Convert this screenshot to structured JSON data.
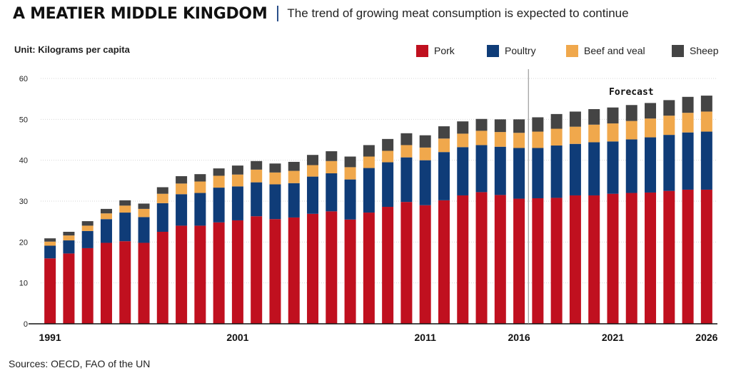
{
  "header": {
    "title": "A MEATIER MIDDLE KINGDOM",
    "subtitle": "The trend of growing meat consumption is expected to continue"
  },
  "unit_label": "Unit: Kilograms per capita",
  "source": "Sources: OECD, FAO of the UN",
  "colors": {
    "Pork": "#c0101f",
    "Poultry": "#0f3c78",
    "Beef and veal": "#f0a84c",
    "Sheep": "#444444"
  },
  "chart_data": {
    "type": "bar",
    "stacked": true,
    "categories": [
      "1991",
      "1992",
      "1993",
      "1994",
      "1995",
      "1996",
      "1997",
      "1998",
      "1999",
      "2000",
      "2001",
      "2002",
      "2003",
      "2004",
      "2005",
      "2006",
      "2007",
      "2008",
      "2009",
      "2010",
      "2011",
      "2012",
      "2013",
      "2014",
      "2015",
      "2016",
      "2017",
      "2018",
      "2019",
      "2020",
      "2021",
      "2022",
      "2023",
      "2024",
      "2025",
      "2026"
    ],
    "xtick_labels": [
      {
        "category": "1991",
        "label": "1991"
      },
      {
        "category": "2001",
        "label": "2001"
      },
      {
        "category": "2011",
        "label": "2011"
      },
      {
        "category": "2016",
        "label": "2016"
      },
      {
        "category": "2021",
        "label": "2021"
      },
      {
        "category": "2026",
        "label": "2026"
      }
    ],
    "series": [
      {
        "name": "Pork",
        "values": [
          16,
          17.2,
          18.5,
          19.8,
          20.2,
          19.8,
          22.5,
          24,
          24,
          24.8,
          25.3,
          26.3,
          25.6,
          26,
          26.9,
          27.5,
          25.5,
          27.2,
          28.6,
          29.8,
          29,
          30.2,
          31.4,
          32.2,
          31.5,
          30.6,
          30.7,
          30.8,
          31.4,
          31.4,
          31.8,
          32,
          32.1,
          32.5,
          32.8,
          32.8
        ]
      },
      {
        "name": "Poultry",
        "values": [
          3.1,
          3.2,
          4.2,
          5.8,
          7,
          6.3,
          7,
          7.7,
          8,
          8.5,
          8.3,
          8.3,
          8.5,
          8.4,
          9.1,
          9.3,
          9.8,
          10.9,
          10.9,
          10.9,
          11,
          11.8,
          11.8,
          11.5,
          11.8,
          12.4,
          12.3,
          12.8,
          12.6,
          13,
          12.8,
          13.1,
          13.5,
          13.7,
          14,
          14.2
        ]
      },
      {
        "name": "Beef and veal",
        "values": [
          1,
          1.2,
          1.3,
          1.4,
          1.7,
          2,
          2.3,
          2.6,
          2.8,
          2.9,
          2.9,
          3.1,
          2.9,
          3,
          2.8,
          3,
          3,
          2.8,
          2.8,
          3,
          3.1,
          3.3,
          3.3,
          3.5,
          3.6,
          3.7,
          4,
          4.1,
          4.2,
          4.3,
          4.4,
          4.5,
          4.6,
          4.7,
          4.8,
          4.9
        ]
      },
      {
        "name": "Sheep",
        "values": [
          0.8,
          0.9,
          1.1,
          1.1,
          1.3,
          1.3,
          1.6,
          1.8,
          1.8,
          1.8,
          2.2,
          2.1,
          2.2,
          2.2,
          2.5,
          2.4,
          2.6,
          2.8,
          2.9,
          2.9,
          3,
          3,
          3,
          2.9,
          3.1,
          3.3,
          3.5,
          3.6,
          3.7,
          3.8,
          3.9,
          3.9,
          3.8,
          3.8,
          3.9,
          3.9
        ]
      }
    ],
    "ylim": [
      0,
      60
    ],
    "yticks": [
      0,
      10,
      20,
      30,
      40,
      50,
      60
    ],
    "grid": true,
    "legend_position": "top-right",
    "annotation": {
      "label": "Forecast",
      "divider_between": [
        "2016",
        "2017"
      ]
    }
  }
}
